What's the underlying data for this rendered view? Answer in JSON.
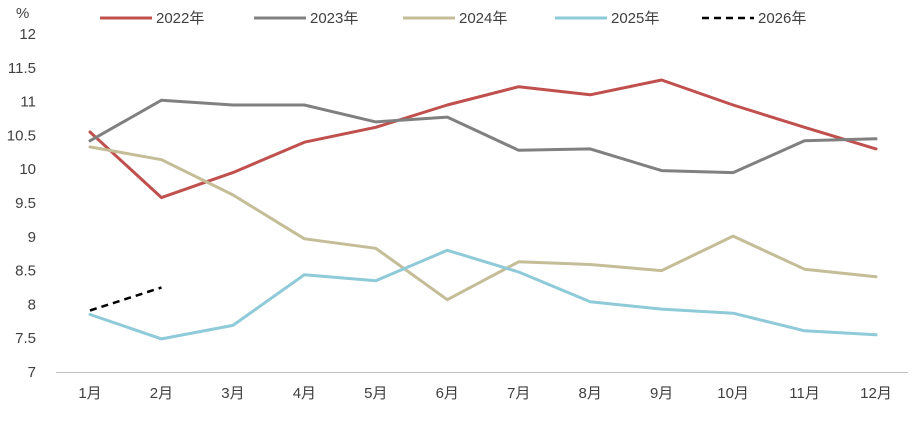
{
  "chart_data": {
    "type": "line",
    "unit_label": "%",
    "categories": [
      "1月",
      "2月",
      "3月",
      "4月",
      "5月",
      "6月",
      "7月",
      "8月",
      "9月",
      "10月",
      "11月",
      "12月"
    ],
    "ylim": [
      7,
      12
    ],
    "yticks": [
      7,
      7.5,
      8,
      8.5,
      9,
      9.5,
      10,
      10.5,
      11,
      11.5,
      12
    ],
    "grid": false,
    "legend_position": "top",
    "series": [
      {
        "name": "2022年",
        "color": "#c0504d",
        "dash": "solid",
        "values": [
          10.55,
          9.58,
          9.95,
          10.4,
          10.62,
          10.95,
          11.22,
          11.1,
          11.32,
          10.95,
          10.62,
          10.3
        ]
      },
      {
        "name": "2023年",
        "color": "#808080",
        "dash": "solid",
        "values": [
          10.42,
          11.02,
          10.95,
          10.95,
          10.7,
          10.77,
          10.28,
          10.3,
          9.98,
          9.95,
          10.42,
          10.45
        ]
      },
      {
        "name": "2024年",
        "color": "#c4bd97",
        "dash": "solid",
        "values": [
          10.33,
          10.14,
          9.62,
          8.97,
          8.83,
          8.07,
          8.63,
          8.59,
          8.5,
          9.01,
          8.52,
          8.41
        ]
      },
      {
        "name": "2025年",
        "color": "#8ecad8",
        "dash": "solid",
        "values": [
          7.85,
          7.49,
          7.69,
          8.44,
          8.35,
          8.8,
          8.48,
          8.04,
          7.93,
          7.87,
          7.61,
          7.55
        ]
      },
      {
        "name": "2026年",
        "color": "#000000",
        "dash": "dashed",
        "values": [
          7.91,
          8.25,
          null,
          null,
          null,
          null,
          null,
          null,
          null,
          null,
          null,
          null
        ]
      }
    ]
  }
}
